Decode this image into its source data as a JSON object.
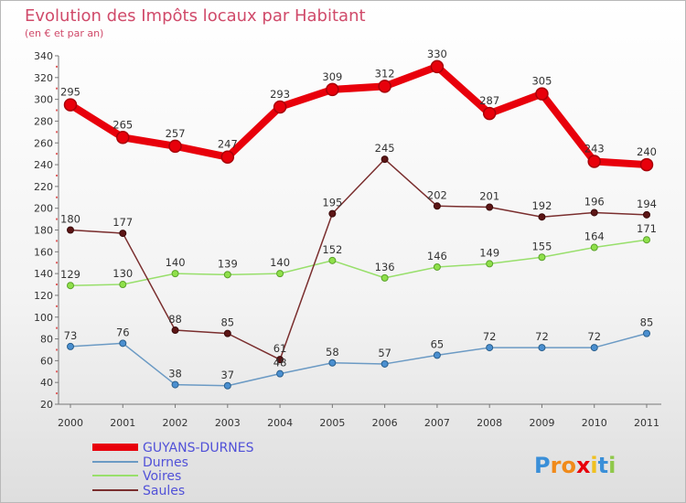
{
  "chart_data": {
    "type": "line",
    "title": "Evolution des Impôts locaux par Habitant",
    "subtitle": "(en € et par an)",
    "xlabel": "",
    "ylabel": "",
    "categories": [
      "2000",
      "2001",
      "2002",
      "2003",
      "2004",
      "2005",
      "2006",
      "2007",
      "2008",
      "2009",
      "2010",
      "2011"
    ],
    "ylim": [
      20,
      340
    ],
    "ytick_step": 20,
    "grid": false,
    "legend_position": "bottom-left",
    "series": [
      {
        "name": "GUYANS-DURNES",
        "color": "#e8000b",
        "values": [
          295,
          265,
          257,
          247,
          293,
          309,
          312,
          330,
          287,
          305,
          243,
          240
        ]
      },
      {
        "name": "Durnes",
        "color": "#6b9ac4",
        "values": [
          73,
          76,
          38,
          37,
          48,
          58,
          57,
          65,
          72,
          72,
          72,
          85
        ]
      },
      {
        "name": "Voires",
        "color": "#98df6b",
        "values": [
          129,
          130,
          140,
          139,
          140,
          152,
          136,
          146,
          149,
          155,
          164,
          171
        ]
      },
      {
        "name": "Saules",
        "color": "#7a2e2e",
        "values": [
          180,
          177,
          88,
          85,
          61,
          195,
          245,
          202,
          201,
          192,
          196,
          194
        ]
      }
    ]
  },
  "brand": {
    "name": "Proxiti"
  }
}
